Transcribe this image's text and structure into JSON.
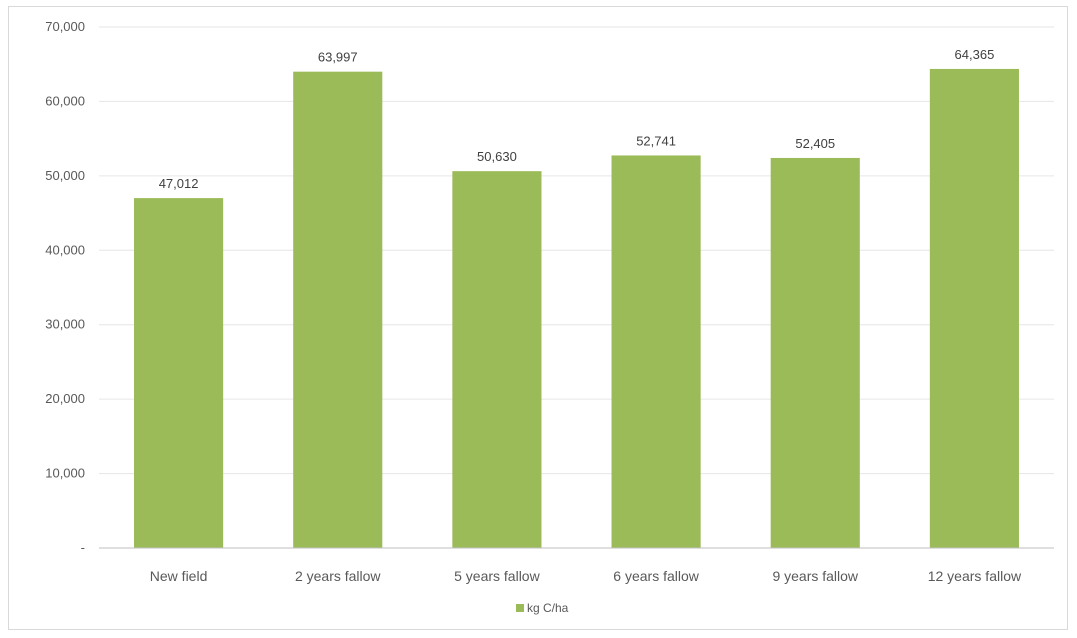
{
  "chart_data": {
    "type": "bar",
    "title": "",
    "xlabel": "",
    "ylabel": "",
    "categories": [
      "New field",
      "2 years fallow",
      "5 years fallow",
      "6 years fallow",
      "9 years fallow",
      "12 years fallow"
    ],
    "series": [
      {
        "name": "kg C/ha",
        "color": "#9bbb59",
        "values": [
          47012,
          63997,
          50630,
          52741,
          52405,
          64365
        ],
        "data_labels": [
          "47,012",
          "63,997",
          "50,630",
          "52,741",
          "52,405",
          "64,365"
        ]
      }
    ],
    "ylim": [
      0,
      70000
    ],
    "y_ticks": [
      0,
      10000,
      20000,
      30000,
      40000,
      50000,
      60000,
      70000
    ],
    "y_tick_labels": [
      "-",
      "10,000",
      "20,000",
      "30,000",
      "40,000",
      "50,000",
      "60,000",
      "70,000"
    ],
    "grid": true,
    "legend": {
      "position": "bottom"
    },
    "colors": {
      "gridline": "#e6e6e6",
      "axis": "#bfbfbf"
    }
  }
}
